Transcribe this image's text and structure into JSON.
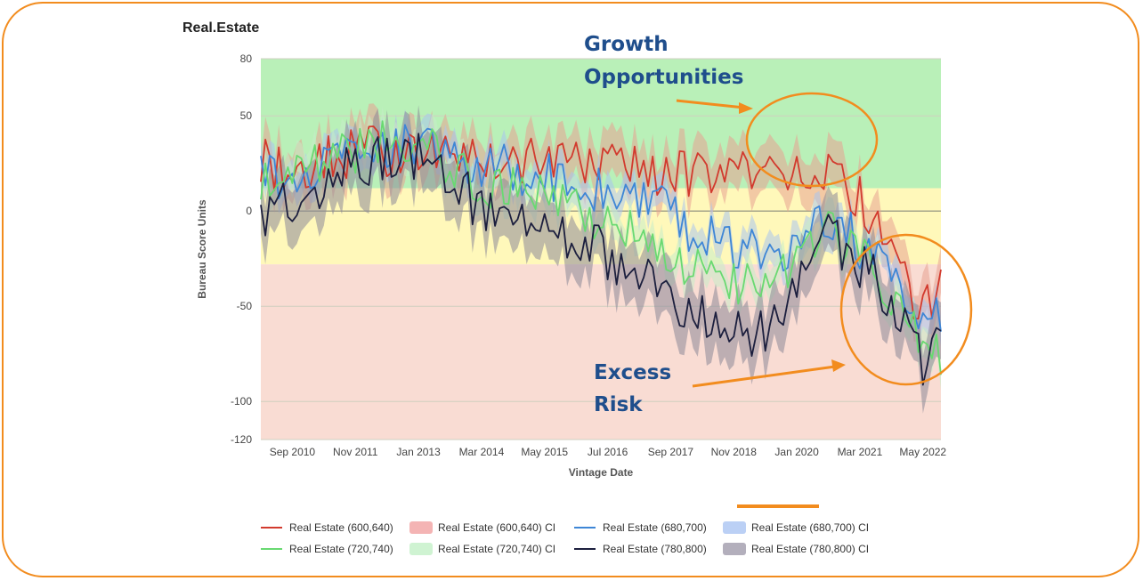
{
  "chart_data": {
    "type": "line",
    "title": "Real.Estate",
    "xlabel": "Vintage Date",
    "ylabel": "Bureau Score Units",
    "ylim": [
      -120,
      80
    ],
    "yticks": [
      80,
      50,
      0,
      -50,
      -100,
      -120
    ],
    "xrange": [
      "2010-02",
      "2022-09"
    ],
    "x_tick_labels": [
      {
        "date": "2010-09",
        "label": "Sep 2010"
      },
      {
        "date": "2011-11",
        "label": "Nov 2011"
      },
      {
        "date": "2013-01",
        "label": "Jan 2013"
      },
      {
        "date": "2014-03",
        "label": "Mar 2014"
      },
      {
        "date": "2015-05",
        "label": "May 2015"
      },
      {
        "date": "2016-07",
        "label": "Jul 2016"
      },
      {
        "date": "2017-09",
        "label": "Sep 2017"
      },
      {
        "date": "2018-11",
        "label": "Nov 2018"
      },
      {
        "date": "2020-01",
        "label": "Jan 2020"
      },
      {
        "date": "2021-03",
        "label": "Mar 2021"
      },
      {
        "date": "2022-05",
        "label": "May 2022"
      }
    ],
    "bands": [
      {
        "from": 12,
        "to": 80,
        "color": "#B9F0B8"
      },
      {
        "from": -28,
        "to": 12,
        "color": "#FFF8BA"
      },
      {
        "from": -120,
        "to": -28,
        "color": "#F9DCD3"
      }
    ],
    "series": [
      {
        "name": "Real Estate (600,640)",
        "color": "#D23A2E",
        "ci_color": "#E8A392",
        "ci_width": 12,
        "points": [
          [
            "2010-02",
            27
          ],
          [
            "2010-08",
            20
          ],
          [
            "2011-02",
            25
          ],
          [
            "2011-08",
            28
          ],
          [
            "2012-02",
            33
          ],
          [
            "2012-08",
            30
          ],
          [
            "2013-02",
            32
          ],
          [
            "2013-08",
            30
          ],
          [
            "2014-02",
            28
          ],
          [
            "2014-08",
            27
          ],
          [
            "2015-02",
            26
          ],
          [
            "2015-08",
            26
          ],
          [
            "2016-02",
            25
          ],
          [
            "2016-08",
            25
          ],
          [
            "2017-02",
            23
          ],
          [
            "2017-08",
            20
          ],
          [
            "2018-02",
            19
          ],
          [
            "2018-08",
            18
          ],
          [
            "2019-02",
            19
          ],
          [
            "2019-08",
            22
          ],
          [
            "2020-02",
            24
          ],
          [
            "2020-08",
            20
          ],
          [
            "2021-02",
            10
          ],
          [
            "2021-08",
            -10
          ],
          [
            "2022-02",
            -45
          ],
          [
            "2022-05",
            -55
          ],
          [
            "2022-09",
            -42
          ]
        ]
      },
      {
        "name": "Real Estate (680,700)",
        "color": "#3E86D6",
        "ci_color": "#A9C4EE",
        "ci_width": 8,
        "points": [
          [
            "2010-02",
            16
          ],
          [
            "2010-08",
            18
          ],
          [
            "2011-02",
            24
          ],
          [
            "2011-08",
            30
          ],
          [
            "2012-02",
            36
          ],
          [
            "2012-08",
            34
          ],
          [
            "2013-02",
            32
          ],
          [
            "2013-08",
            28
          ],
          [
            "2014-02",
            25
          ],
          [
            "2014-08",
            22
          ],
          [
            "2015-02",
            20
          ],
          [
            "2015-08",
            16
          ],
          [
            "2016-02",
            14
          ],
          [
            "2016-08",
            10
          ],
          [
            "2017-02",
            6
          ],
          [
            "2017-08",
            0
          ],
          [
            "2018-02",
            -10
          ],
          [
            "2018-08",
            -15
          ],
          [
            "2019-02",
            -20
          ],
          [
            "2019-08",
            -24
          ],
          [
            "2020-02",
            -10
          ],
          [
            "2020-08",
            -5
          ],
          [
            "2021-02",
            -15
          ],
          [
            "2021-08",
            -30
          ],
          [
            "2022-02",
            -45
          ],
          [
            "2022-05",
            -55
          ],
          [
            "2022-09",
            -52
          ]
        ]
      },
      {
        "name": "Real Estate (720,740)",
        "color": "#69D971",
        "ci_color": "#C6EDC9",
        "ci_width": 8,
        "points": [
          [
            "2010-02",
            18
          ],
          [
            "2010-08",
            20
          ],
          [
            "2011-02",
            25
          ],
          [
            "2011-08",
            30
          ],
          [
            "2012-02",
            34
          ],
          [
            "2012-08",
            35
          ],
          [
            "2013-02",
            33
          ],
          [
            "2013-08",
            26
          ],
          [
            "2014-02",
            16
          ],
          [
            "2014-08",
            12
          ],
          [
            "2015-02",
            10
          ],
          [
            "2015-08",
            6
          ],
          [
            "2016-02",
            0
          ],
          [
            "2016-08",
            -5
          ],
          [
            "2017-02",
            -10
          ],
          [
            "2017-08",
            -22
          ],
          [
            "2018-02",
            -32
          ],
          [
            "2018-08",
            -38
          ],
          [
            "2019-02",
            -40
          ],
          [
            "2019-08",
            -42
          ],
          [
            "2020-02",
            -20
          ],
          [
            "2020-08",
            -12
          ],
          [
            "2021-02",
            -22
          ],
          [
            "2021-08",
            -35
          ],
          [
            "2022-02",
            -55
          ],
          [
            "2022-05",
            -70
          ],
          [
            "2022-09",
            -75
          ]
        ]
      },
      {
        "name": "Real Estate (780,800)",
        "color": "#1C1F3E",
        "ci_color": "#8D8898",
        "ci_width": 15,
        "points": [
          [
            "2010-02",
            -8
          ],
          [
            "2010-08",
            5
          ],
          [
            "2011-02",
            10
          ],
          [
            "2011-08",
            20
          ],
          [
            "2012-02",
            25
          ],
          [
            "2012-08",
            30
          ],
          [
            "2013-02",
            28
          ],
          [
            "2013-08",
            20
          ],
          [
            "2014-02",
            2
          ],
          [
            "2014-08",
            -5
          ],
          [
            "2015-02",
            -8
          ],
          [
            "2015-08",
            -12
          ],
          [
            "2016-02",
            -15
          ],
          [
            "2016-08",
            -25
          ],
          [
            "2017-02",
            -32
          ],
          [
            "2017-08",
            -45
          ],
          [
            "2018-02",
            -55
          ],
          [
            "2018-08",
            -62
          ],
          [
            "2019-02",
            -65
          ],
          [
            "2019-08",
            -62
          ],
          [
            "2020-02",
            -30
          ],
          [
            "2020-08",
            -12
          ],
          [
            "2021-02",
            -25
          ],
          [
            "2021-08",
            -40
          ],
          [
            "2022-02",
            -60
          ],
          [
            "2022-05",
            -80
          ],
          [
            "2022-09",
            -72
          ]
        ]
      }
    ],
    "legend": {
      "placement": "bottom",
      "entries": [
        {
          "label": "Real Estate (600,640)",
          "kind": "line",
          "color": "#D23A2E"
        },
        {
          "label": "Real Estate (600,640) CI",
          "kind": "box",
          "color": "#F4B4B4"
        },
        {
          "label": "Real Estate (680,700)",
          "kind": "line",
          "color": "#3E86D6"
        },
        {
          "label": "Real Estate (680,700) CI",
          "kind": "box",
          "color": "#BBD0F5"
        },
        {
          "label": "Real Estate (720,740)",
          "kind": "line",
          "color": "#69D971"
        },
        {
          "label": "Real Estate (720,740) CI",
          "kind": "box",
          "color": "#CFF3D2"
        },
        {
          "label": "Real Estate (780,800)",
          "kind": "line",
          "color": "#1C1F3E"
        },
        {
          "label": "Real Estate (780,800) CI",
          "kind": "box",
          "color": "#B3AFBC"
        }
      ]
    },
    "annotations": [
      {
        "text": [
          "Growth",
          "Opportunities"
        ]
      },
      {
        "text": [
          "Excess",
          "Risk"
        ]
      }
    ],
    "accent_color": "#F28C1E"
  }
}
